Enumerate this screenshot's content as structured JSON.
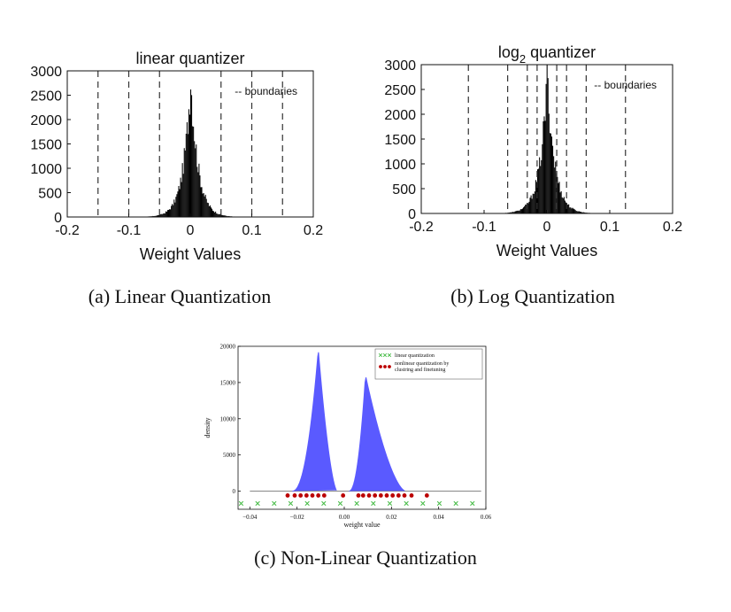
{
  "captions": {
    "a": "(a) Linear Quantization",
    "b": "(b) Log Quantization",
    "c": "(c) Non-Linear Quantization"
  },
  "chart_data": [
    {
      "type": "bar",
      "subtype": "histogram",
      "title": "linear quantizer",
      "xlabel": "Weight Values",
      "ylabel": "",
      "xlim": [
        -0.2,
        0.2
      ],
      "ylim": [
        0,
        3000
      ],
      "xticks": [
        "-0.2",
        "-0.1",
        "0",
        "0.1",
        "0.2"
      ],
      "yticks": [
        "0",
        "500",
        "1000",
        "1500",
        "2000",
        "2500",
        "3000"
      ],
      "distribution": {
        "center": 0.0,
        "peak": 2900,
        "support": [
          -0.15,
          0.15
        ]
      },
      "boundaries": [
        -0.15,
        -0.1,
        -0.05,
        0.05,
        0.1,
        0.15
      ],
      "legend": "-- boundaries",
      "legend_position": "top-right",
      "grid": false,
      "colors": {
        "bars": "#000000",
        "boundaries": "#333333"
      }
    },
    {
      "type": "bar",
      "subtype": "histogram",
      "title": "log",
      "title_sub": "2",
      "title_rest": " quantizer",
      "xlabel": "Weight Values",
      "ylabel": "",
      "xlim": [
        -0.2,
        0.2
      ],
      "ylim": [
        0,
        3000
      ],
      "xticks": [
        "-0.2",
        "-0.1",
        "0",
        "0.1",
        "0.2"
      ],
      "yticks": [
        "0",
        "500",
        "1000",
        "1500",
        "2000",
        "2500",
        "3000"
      ],
      "distribution": {
        "center": 0.0,
        "peak": 2750,
        "support": [
          -0.14,
          0.14
        ]
      },
      "boundaries": [
        -0.125,
        -0.0625,
        -0.03125,
        -0.015625,
        0.015625,
        0.03125,
        0.0625,
        0.125
      ],
      "legend": "-- boundaries",
      "legend_position": "top-right",
      "grid": false,
      "colors": {
        "bars": "#000000",
        "boundaries": "#333333"
      }
    },
    {
      "type": "area",
      "xlabel": "weight value",
      "ylabel": "density",
      "xlim": [
        -0.045,
        0.06
      ],
      "ylim": [
        -2500,
        20000
      ],
      "xticks": [
        "−0.04",
        "−0.02",
        "0.00",
        "0.02",
        "0.04",
        "0.06"
      ],
      "yticks": [
        "0",
        "5000",
        "10000",
        "15000",
        "20000"
      ],
      "series": [
        {
          "peak_x": -0.011,
          "peak": 19500,
          "support": [
            -0.022,
            -0.003
          ]
        },
        {
          "peak_x": 0.009,
          "peak": 16000,
          "support": [
            0.002,
            0.026
          ]
        }
      ],
      "linear_quantization_points": [
        -0.0437,
        -0.0367,
        -0.0297,
        -0.0227,
        -0.0157,
        -0.0087,
        -0.0017,
        0.0053,
        0.0123,
        0.0193,
        0.0263,
        0.0333,
        0.0403,
        0.0473,
        0.0543,
        0.0613
      ],
      "nonlinear_quantization_points": [
        -0.024,
        -0.021,
        -0.0185,
        -0.016,
        -0.0135,
        -0.011,
        -0.0085,
        -0.0005,
        0.006,
        0.008,
        0.0105,
        0.013,
        0.0155,
        0.018,
        0.0205,
        0.023,
        0.0255,
        0.0285,
        0.035
      ],
      "legend": [
        "linear quantization",
        "nonlinear quantization by",
        "clustring and finetuning"
      ],
      "legend_position": "top-right",
      "grid": false,
      "colors": {
        "area": "#5a5aff",
        "linear": "#44bb44",
        "nonlinear": "#bb0000"
      }
    }
  ]
}
